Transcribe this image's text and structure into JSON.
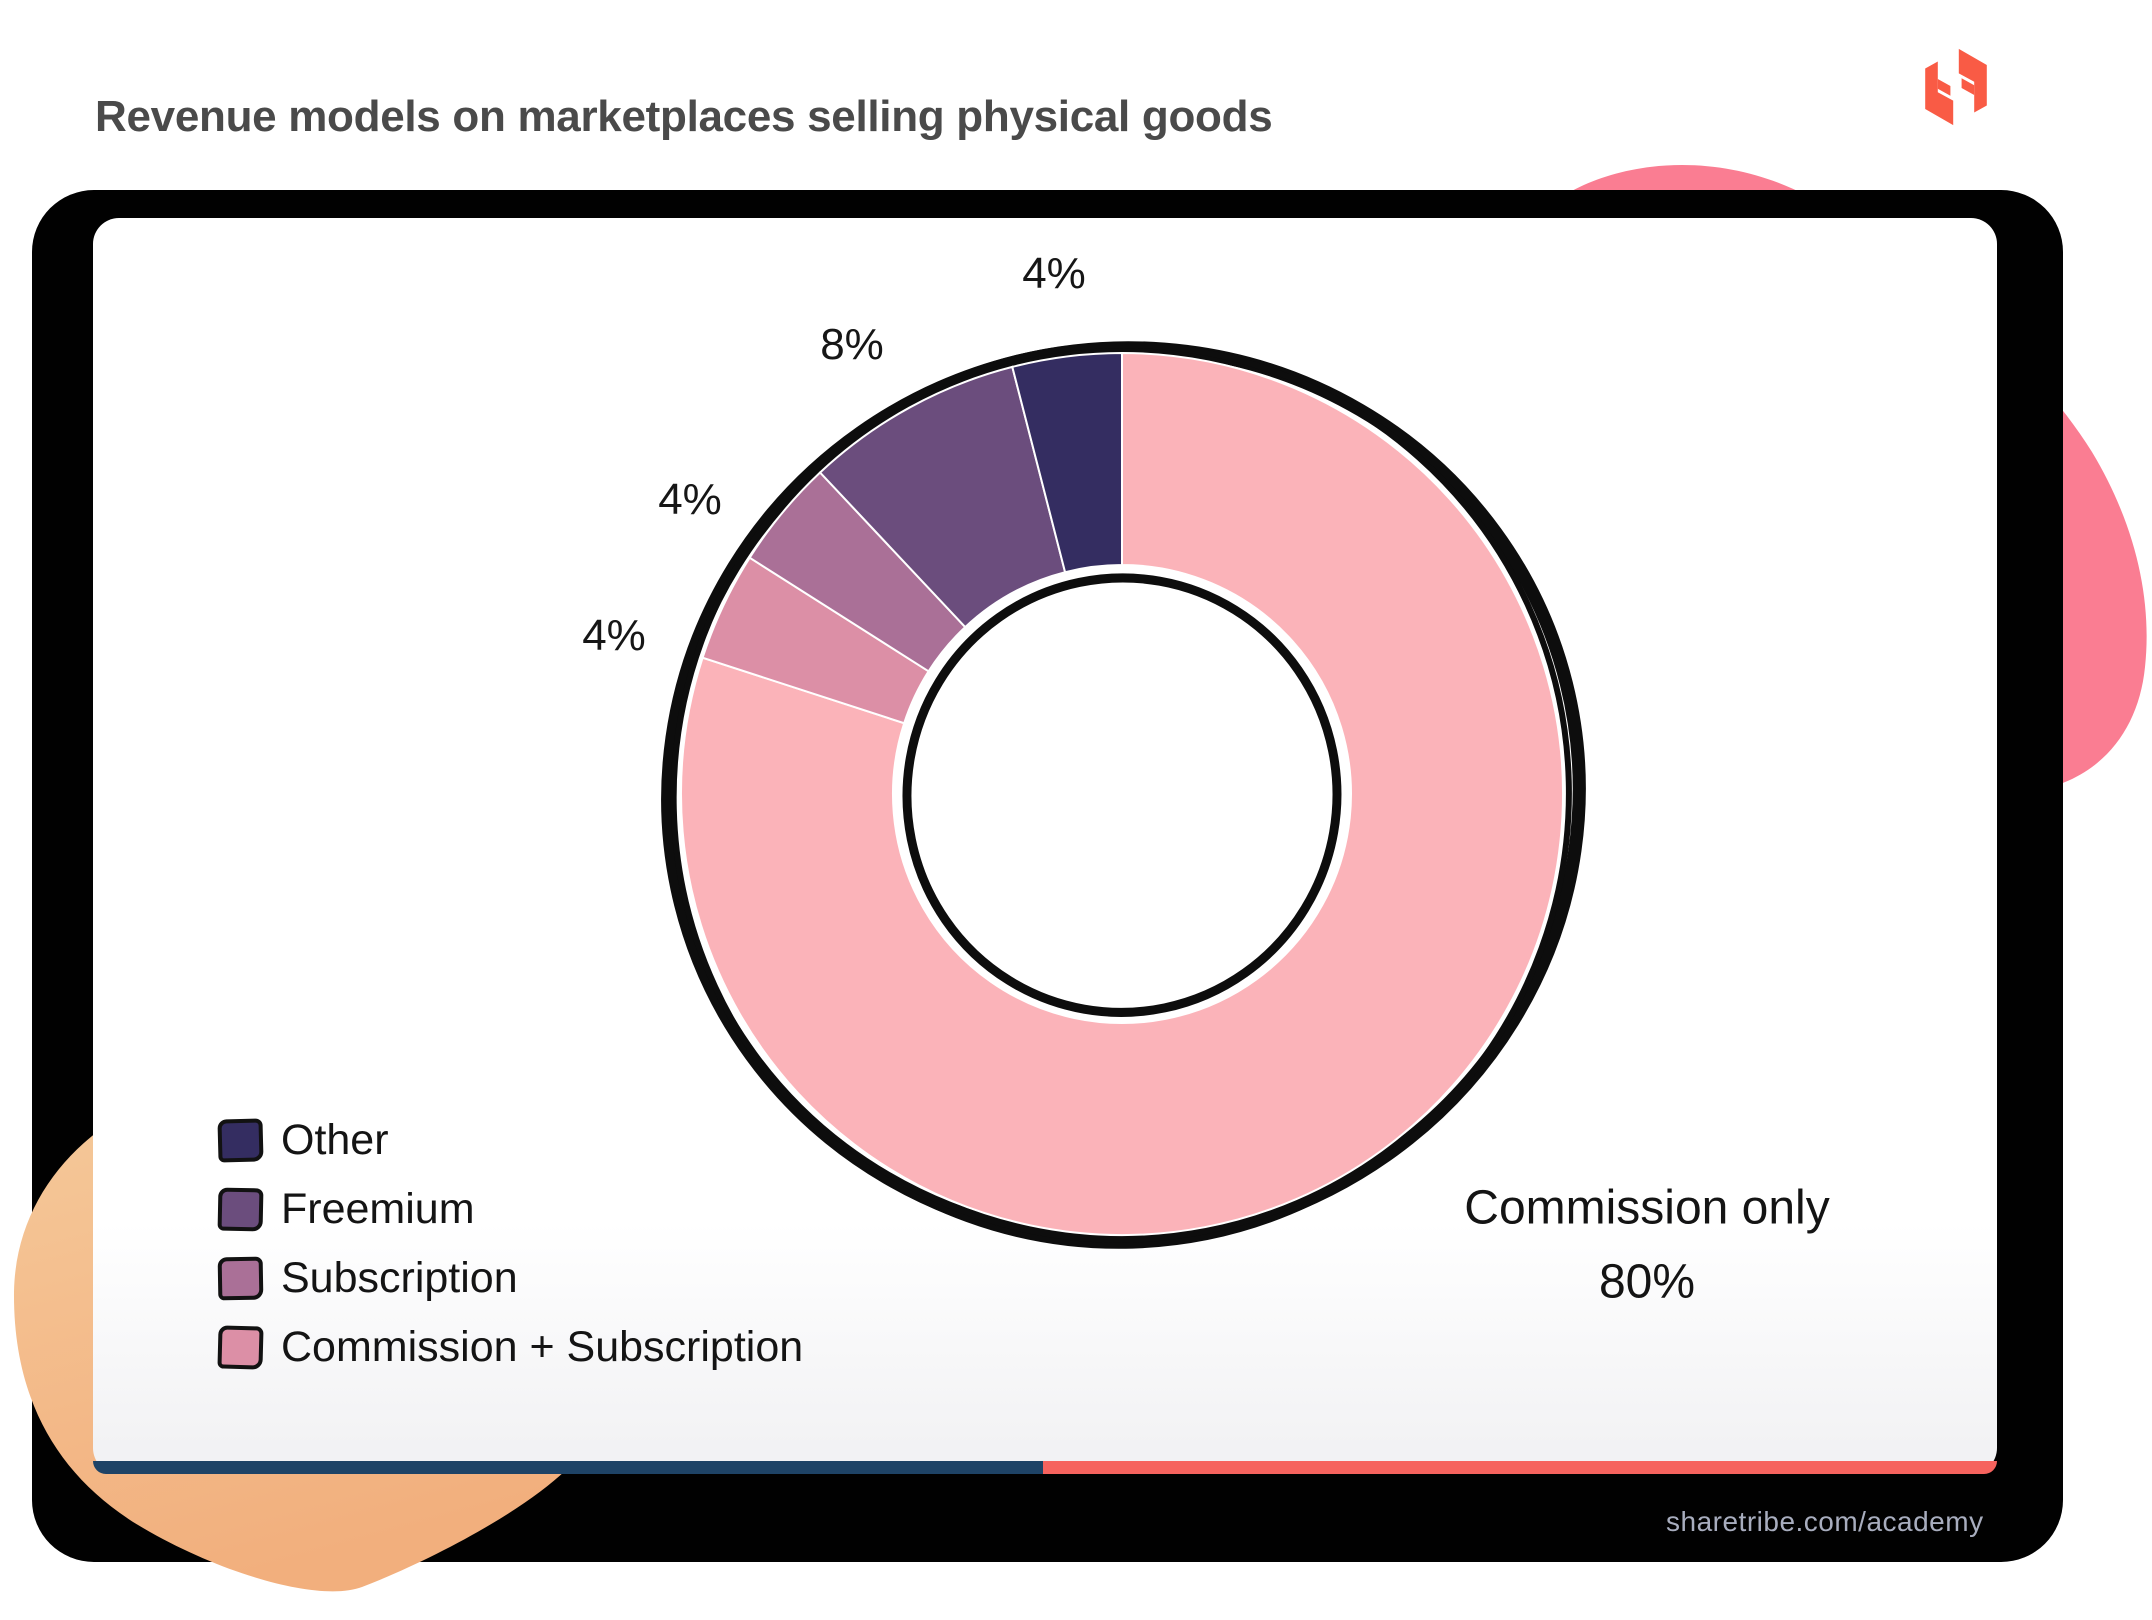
{
  "page": {
    "title": "Revenue models on marketplaces selling physical goods",
    "brand": "Sharetribe",
    "footer_url": "sharetribe.com/academy"
  },
  "chart_data": {
    "type": "pie",
    "variant": "donut",
    "title": "Revenue models on marketplaces selling physical goods",
    "start_angle_deg": 0,
    "direction": "clockwise",
    "hole": true,
    "outline_color": "#0D0D0D",
    "series": [
      {
        "name": "Commission only",
        "value": 80,
        "pct_label": "80%",
        "color": "#FBB3B9"
      },
      {
        "name": "Commission + Subscription",
        "value": 4,
        "pct_label": "4%",
        "color": "#DC8FA6"
      },
      {
        "name": "Subscription",
        "value": 4,
        "pct_label": "4%",
        "color": "#AA7097"
      },
      {
        "name": "Freemium",
        "value": 8,
        "pct_label": "8%",
        "color": "#6B4D7D"
      },
      {
        "name": "Other",
        "value": 4,
        "pct_label": "4%",
        "color": "#342D61"
      }
    ],
    "legend": {
      "position": "bottom-left",
      "order": [
        "Other",
        "Freemium",
        "Subscription",
        "Commission + Subscription"
      ]
    },
    "callout": {
      "label": "Commission only",
      "pct": "80%"
    }
  },
  "decor": {
    "title_color": "#4A4A4A",
    "text_dark": "#141414",
    "url_color": "#A8ADBE",
    "frame_color": "#010101",
    "blob_pink": "#FA7D92",
    "blob_peach_from": "#F5CA9B",
    "blob_peach_to": "#F2AF7D",
    "strip_navy": "#1E4366",
    "strip_coral": "#F6635E",
    "logo_color": "#F95B45"
  }
}
